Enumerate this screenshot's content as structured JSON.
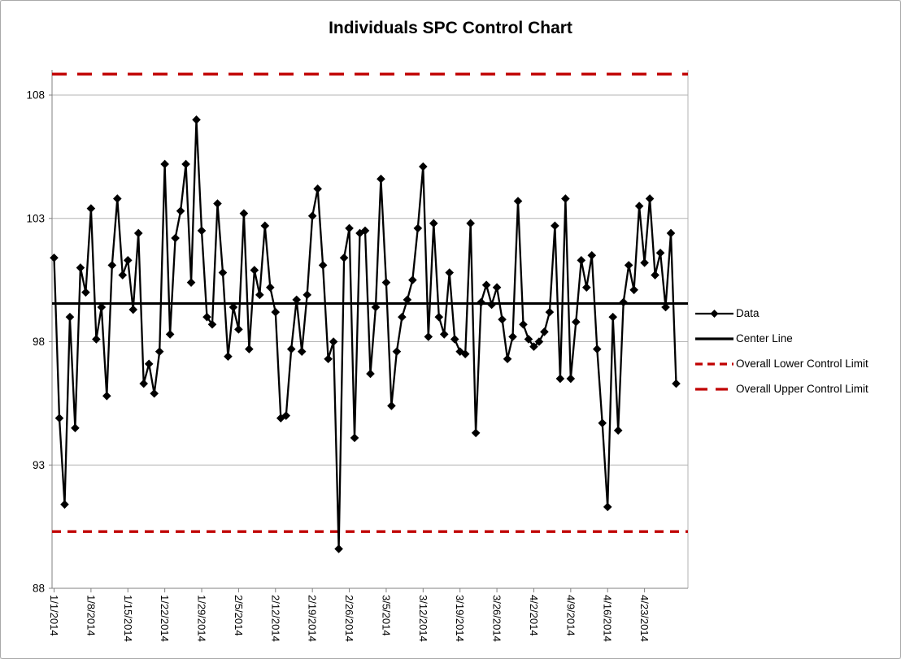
{
  "chart": {
    "title": "Individuals SPC Control Chart",
    "legend": [
      {
        "label": "Data",
        "type": "line-diamond",
        "color": "#000000"
      },
      {
        "label": "Center Line",
        "type": "line",
        "color": "#000000"
      },
      {
        "label": "Overall Lower Control Limit",
        "type": "dashed-short",
        "color": "#c00000"
      },
      {
        "label": "Overall Upper Control Limit",
        "type": "dashed-long",
        "color": "#c00000"
      }
    ]
  },
  "chart_data": {
    "type": "line",
    "title": "Individuals SPC Control Chart",
    "xlabel": "",
    "ylabel": "",
    "ylim": [
      88,
      109.2
    ],
    "yticks": [
      88,
      93,
      98,
      103,
      108
    ],
    "grid": "horizontal",
    "legend_position": "right",
    "marker": "diamond",
    "center_line": 99.55,
    "lower_control_limit": 90.3,
    "upper_control_limit": 108.85,
    "xtick_interval_days": 7,
    "xtick_labels": [
      "1/1/2014",
      "1/8/2014",
      "1/15/2014",
      "1/22/2014",
      "1/29/2014",
      "2/5/2014",
      "2/12/2014",
      "2/19/2014",
      "2/26/2014",
      "3/5/2014",
      "3/12/2014",
      "3/19/2014",
      "3/26/2014",
      "4/2/2014",
      "4/9/2014",
      "4/16/2014",
      "4/23/2014"
    ],
    "x": [
      "1/1/2014",
      "1/2/2014",
      "1/3/2014",
      "1/4/2014",
      "1/5/2014",
      "1/6/2014",
      "1/7/2014",
      "1/8/2014",
      "1/9/2014",
      "1/10/2014",
      "1/11/2014",
      "1/12/2014",
      "1/13/2014",
      "1/14/2014",
      "1/15/2014",
      "1/16/2014",
      "1/17/2014",
      "1/18/2014",
      "1/19/2014",
      "1/20/2014",
      "1/21/2014",
      "1/22/2014",
      "1/23/2014",
      "1/24/2014",
      "1/25/2014",
      "1/26/2014",
      "1/27/2014",
      "1/28/2014",
      "1/29/2014",
      "1/30/2014",
      "1/31/2014",
      "2/1/2014",
      "2/2/2014",
      "2/3/2014",
      "2/4/2014",
      "2/5/2014",
      "2/6/2014",
      "2/7/2014",
      "2/8/2014",
      "2/9/2014",
      "2/10/2014",
      "2/11/2014",
      "2/12/2014",
      "2/13/2014",
      "2/14/2014",
      "2/15/2014",
      "2/16/2014",
      "2/17/2014",
      "2/18/2014",
      "2/19/2014",
      "2/20/2014",
      "2/21/2014",
      "2/22/2014",
      "2/23/2014",
      "2/24/2014",
      "2/25/2014",
      "2/26/2014",
      "2/27/2014",
      "2/28/2014",
      "3/1/2014",
      "3/2/2014",
      "3/3/2014",
      "3/4/2014",
      "3/5/2014",
      "3/6/2014",
      "3/7/2014",
      "3/8/2014",
      "3/9/2014",
      "3/10/2014",
      "3/11/2014",
      "3/12/2014",
      "3/13/2014",
      "3/14/2014",
      "3/15/2014",
      "3/16/2014",
      "3/17/2014",
      "3/18/2014",
      "3/19/2014",
      "3/20/2014",
      "3/21/2014",
      "3/22/2014",
      "3/23/2014",
      "3/24/2014",
      "3/25/2014",
      "3/26/2014",
      "3/27/2014",
      "3/28/2014",
      "3/29/2014",
      "3/30/2014",
      "3/31/2014",
      "4/1/2014",
      "4/2/2014",
      "4/3/2014",
      "4/4/2014",
      "4/5/2014",
      "4/6/2014",
      "4/7/2014",
      "4/8/2014",
      "4/9/2014",
      "4/10/2014",
      "4/11/2014",
      "4/12/2014",
      "4/13/2014",
      "4/14/2014",
      "4/15/2014",
      "4/16/2014",
      "4/17/2014",
      "4/18/2014",
      "4/19/2014",
      "4/20/2014",
      "4/21/2014",
      "4/22/2014",
      "4/23/2014",
      "4/24/2014",
      "4/25/2014",
      "4/26/2014",
      "4/27/2014",
      "4/28/2014",
      "4/29/2014"
    ],
    "series": [
      {
        "name": "Data",
        "values": [
          101.4,
          94.9,
          91.4,
          99.0,
          94.5,
          101.0,
          100.0,
          103.4,
          98.1,
          99.4,
          95.8,
          101.1,
          103.8,
          100.7,
          101.3,
          99.3,
          102.4,
          96.3,
          97.1,
          95.9,
          97.6,
          105.2,
          98.3,
          102.2,
          103.3,
          105.2,
          100.4,
          107.0,
          102.5,
          99.0,
          98.7,
          103.6,
          100.8,
          97.4,
          99.4,
          98.5,
          103.2,
          97.7,
          100.9,
          99.9,
          102.7,
          100.2,
          99.2,
          94.9,
          95.0,
          97.7,
          99.7,
          97.6,
          99.9,
          103.1,
          104.2,
          101.1,
          97.3,
          98.0,
          89.6,
          101.4,
          102.6,
          94.1,
          102.4,
          102.5,
          96.7,
          99.4,
          104.6,
          100.4,
          95.4,
          97.6,
          99.0,
          99.7,
          100.5,
          102.6,
          105.1,
          98.2,
          102.8,
          99.0,
          98.3,
          100.8,
          98.1,
          97.6,
          97.5,
          102.8,
          94.3,
          99.6,
          100.3,
          99.5,
          100.2,
          98.9,
          97.3,
          98.2,
          103.7,
          98.7,
          98.1,
          97.8,
          98.0,
          98.4,
          99.2,
          102.7,
          96.5,
          103.8,
          96.5,
          98.8,
          101.3,
          100.2,
          101.5,
          97.7,
          94.7,
          91.3,
          99.0,
          94.4,
          99.6,
          101.1,
          100.1,
          103.5,
          101.2,
          103.8,
          100.7,
          101.6,
          99.4,
          102.4,
          96.3
        ]
      }
    ],
    "colors": {
      "series": "#000000",
      "center_line": "#000000",
      "control_limits": "#c00000",
      "gridline": "#b3b3b3",
      "axis": "#808080",
      "text": "#000000",
      "background": "#ffffff"
    }
  }
}
